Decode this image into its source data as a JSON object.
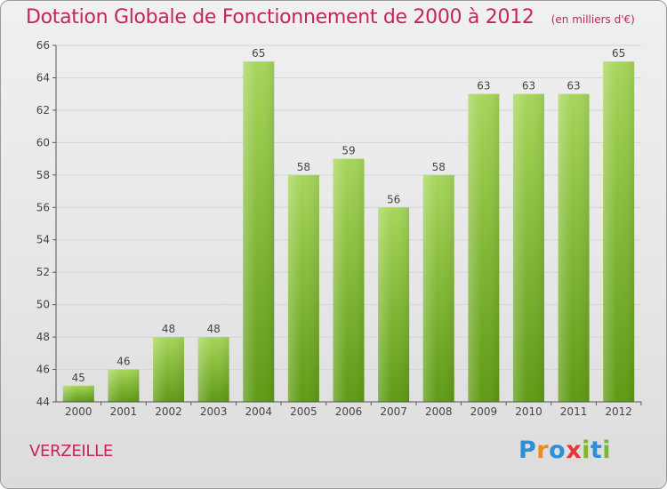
{
  "title": "Dotation Globale de Fonctionnement de 2000 à 2012",
  "subtitle": "(en milliers d'€)",
  "commune": "VERZEILLE",
  "brand": {
    "letters": [
      "P",
      "r",
      "o",
      "x",
      "i",
      "t",
      "i"
    ],
    "colors": [
      "#2f8fd4",
      "#f08a1c",
      "#2f8fd4",
      "#e53935",
      "#7cb82f",
      "#2f8fd4",
      "#7cb82f"
    ]
  },
  "colors": {
    "title": "#c5245f",
    "bar_light": "#a6d65a",
    "bar_dark": "#5e9a14",
    "grid": "#d6d6d6",
    "axis": "#555555",
    "text": "#444444"
  },
  "chart_data": {
    "type": "bar",
    "title": "Dotation Globale de Fonctionnement de 2000 à 2012",
    "subtitle": "(en milliers d'€)",
    "categories": [
      "2000",
      "2001",
      "2002",
      "2003",
      "2004",
      "2005",
      "2006",
      "2007",
      "2008",
      "2009",
      "2010",
      "2011",
      "2012"
    ],
    "values": [
      45,
      46,
      48,
      48,
      65,
      58,
      59,
      56,
      58,
      63,
      63,
      63,
      65
    ],
    "ylim": [
      44,
      66
    ],
    "yticks": [
      44,
      46,
      48,
      50,
      52,
      54,
      56,
      58,
      60,
      62,
      64,
      66
    ],
    "grid": true,
    "data_labels": true,
    "xlabel": "",
    "ylabel": ""
  }
}
